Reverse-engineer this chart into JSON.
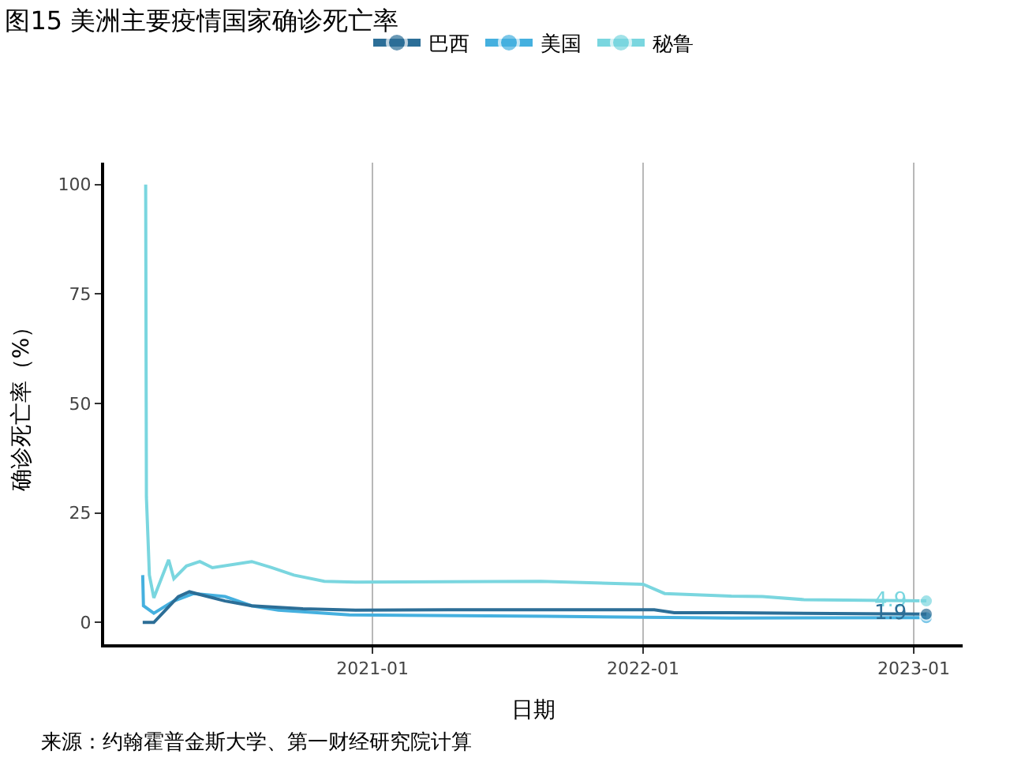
{
  "chart_data": {
    "type": "line",
    "title": "图15 美洲主要疫情国家确诊死亡率",
    "xlabel": "日期",
    "ylabel": "确诊死亡率（%）",
    "xlim": [
      "2020-01-05",
      "2023-03-08"
    ],
    "xticks": [
      {
        "value": "2021-01-01",
        "label": "2021-01"
      },
      {
        "value": "2022-01-01",
        "label": "2022-01"
      },
      {
        "value": "2023-01-01",
        "label": "2023-01"
      }
    ],
    "ylim": [
      -5,
      105
    ],
    "yticks": [
      0,
      25,
      50,
      75,
      100
    ],
    "grid": "x",
    "legend": "top",
    "line_style": "solid",
    "series": [
      {
        "name": "巴西",
        "color": "#2c6e97",
        "x": [
          "2020-02-26",
          "2020-03-12",
          "2020-04-14",
          "2020-04-29",
          "2020-06-16",
          "2020-07-22",
          "2020-09-29",
          "2020-12-09",
          "2021-04-13",
          "2022-01-16",
          "2022-02-12",
          "2022-04-30",
          "2023-01-18"
        ],
        "values": [
          0,
          0,
          5.9,
          7.0,
          4.9,
          3.8,
          3.1,
          2.8,
          2.9,
          2.9,
          2.2,
          2.2,
          1.9
        ]
      },
      {
        "name": "美国",
        "color": "#45b0df",
        "x": [
          "2020-02-26",
          "2020-02-27",
          "2020-03-12",
          "2020-04-08",
          "2020-05-05",
          "2020-06-16",
          "2020-07-22",
          "2020-08-27",
          "2020-12-01",
          "2021-08-23",
          "2022-04-30",
          "2023-01-18"
        ],
        "values": [
          10.8,
          3.8,
          2.1,
          4.9,
          6.6,
          5.9,
          3.8,
          2.8,
          1.7,
          1.4,
          1.0,
          1.1
        ]
      },
      {
        "name": "秘鲁",
        "color": "#7ad6df",
        "x": [
          "2020-03-01",
          "2020-03-02",
          "2020-03-06",
          "2020-03-12",
          "2020-04-01",
          "2020-04-08",
          "2020-04-25",
          "2020-05-13",
          "2020-05-30",
          "2020-07-22",
          "2020-08-18",
          "2020-09-17",
          "2020-10-28",
          "2020-12-09",
          "2021-08-16",
          "2022-01-01",
          "2022-01-30",
          "2022-04-30",
          "2022-06-11",
          "2022-08-06",
          "2023-01-18"
        ],
        "values": [
          100,
          28.6,
          10.8,
          5.6,
          14.3,
          10,
          12.9,
          13.9,
          12.5,
          13.9,
          12.5,
          10.8,
          9.4,
          9.2,
          9.4,
          8.7,
          6.6,
          6.0,
          5.9,
          5.2,
          4.9
        ]
      }
    ],
    "annotations": [
      {
        "text": "4.9",
        "x": "2023-01-18",
        "y": 4.9
      },
      {
        "text": "1.9",
        "x": "2023-01-18",
        "y": 1.9
      },
      "来源：约翰霍普金斯大学、第一财经研究院计算"
    ]
  }
}
